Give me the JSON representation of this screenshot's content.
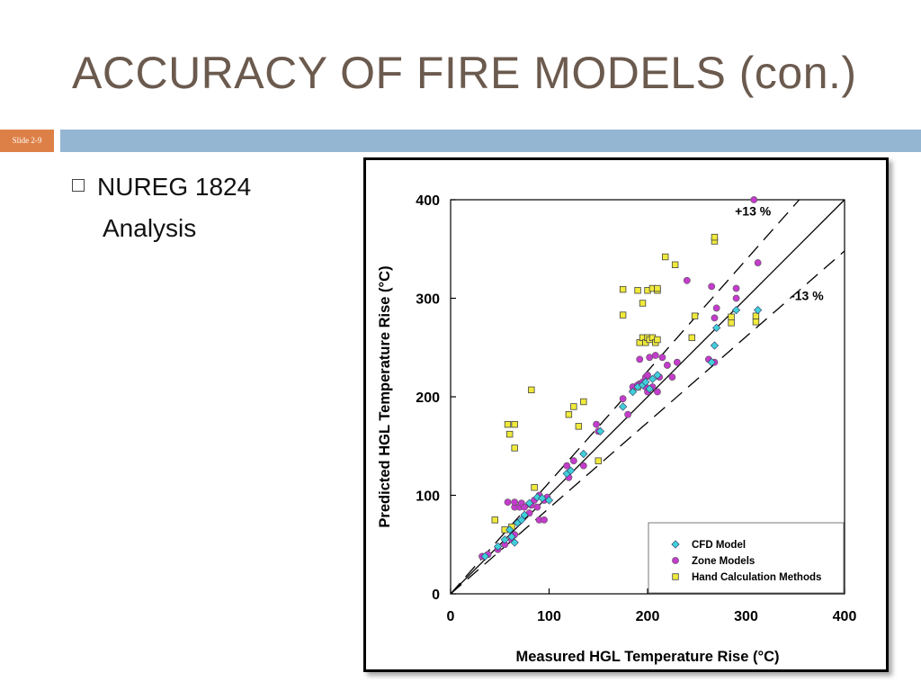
{
  "slide": {
    "title": "ACCURACY OF FIRE MODELS (con.)",
    "slide_number": "Slide 2-9",
    "bullet": {
      "line1": "NUREG 1824",
      "line2": "Analysis"
    },
    "colors": {
      "title": "#6b5a4e",
      "bar": "#94b6d2",
      "tag": "#dd8047"
    }
  },
  "chart_data": {
    "type": "scatter",
    "xlabel": "Measured HGL Temperature Rise (°C)",
    "ylabel": "Predicted HGL Temperature Rise (°C)",
    "xlim": [
      0,
      400
    ],
    "ylim": [
      0,
      400
    ],
    "xticks": [
      "0",
      "100",
      "200",
      "300",
      "400"
    ],
    "yticks": [
      "0",
      "100",
      "200",
      "300",
      "400"
    ],
    "grid": false,
    "legend_position": "bottom-right",
    "annotations": [
      {
        "text": "+13 %",
        "x": 307,
        "y": 384
      },
      {
        "text": "-13 %",
        "x": 362,
        "y": 298
      }
    ],
    "reference_lines": [
      {
        "style": "solid",
        "slope": 1.0
      },
      {
        "style": "dashed",
        "slope": 1.13
      },
      {
        "style": "dashed",
        "slope": 0.87
      }
    ],
    "series": [
      {
        "name": "CFD Model",
        "marker": "diamond",
        "color": "#3fd0d8",
        "points": [
          [
            35,
            38
          ],
          [
            48,
            48
          ],
          [
            55,
            55
          ],
          [
            62,
            58
          ],
          [
            68,
            72
          ],
          [
            72,
            75
          ],
          [
            80,
            92
          ],
          [
            88,
            98
          ],
          [
            93,
            97
          ],
          [
            118,
            122
          ],
          [
            122,
            125
          ],
          [
            135,
            142
          ],
          [
            152,
            165
          ],
          [
            175,
            190
          ],
          [
            190,
            210
          ],
          [
            195,
            212
          ],
          [
            198,
            215
          ],
          [
            202,
            208
          ],
          [
            205,
            218
          ],
          [
            210,
            222
          ],
          [
            265,
            235
          ],
          [
            268,
            252
          ],
          [
            270,
            270
          ],
          [
            290,
            288
          ],
          [
            312,
            288
          ],
          [
            60,
            65
          ],
          [
            65,
            52
          ],
          [
            75,
            80
          ],
          [
            100,
            95
          ],
          [
            185,
            205
          ]
        ]
      },
      {
        "name": "Zone Models",
        "marker": "circle",
        "color": "#c43ccc",
        "points": [
          [
            32,
            38
          ],
          [
            38,
            40
          ],
          [
            48,
            45
          ],
          [
            55,
            50
          ],
          [
            58,
            93
          ],
          [
            62,
            55
          ],
          [
            65,
            60
          ],
          [
            65,
            88
          ],
          [
            65,
            93
          ],
          [
            70,
            88
          ],
          [
            72,
            92
          ],
          [
            75,
            88
          ],
          [
            80,
            82
          ],
          [
            82,
            90
          ],
          [
            85,
            95
          ],
          [
            88,
            88
          ],
          [
            90,
            100
          ],
          [
            90,
            75
          ],
          [
            95,
            75
          ],
          [
            95,
            95
          ],
          [
            98,
            98
          ],
          [
            118,
            130
          ],
          [
            120,
            118
          ],
          [
            125,
            135
          ],
          [
            135,
            130
          ],
          [
            148,
            172
          ],
          [
            175,
            198
          ],
          [
            180,
            182
          ],
          [
            185,
            210
          ],
          [
            190,
            212
          ],
          [
            192,
            238
          ],
          [
            195,
            215
          ],
          [
            198,
            220
          ],
          [
            200,
            205
          ],
          [
            200,
            222
          ],
          [
            202,
            240
          ],
          [
            205,
            210
          ],
          [
            208,
            242
          ],
          [
            210,
            205
          ],
          [
            212,
            220
          ],
          [
            215,
            240
          ],
          [
            220,
            232
          ],
          [
            225,
            220
          ],
          [
            230,
            235
          ],
          [
            240,
            318
          ],
          [
            262,
            238
          ],
          [
            265,
            312
          ],
          [
            268,
            280
          ],
          [
            270,
            290
          ],
          [
            268,
            235
          ],
          [
            290,
            300
          ],
          [
            290,
            310
          ],
          [
            308,
            400
          ],
          [
            312,
            336
          ],
          [
            150,
            165
          ],
          [
            198,
            210
          ]
        ]
      },
      {
        "name": "Hand Calculation Methods",
        "marker": "square",
        "color": "#f0ea3a",
        "points": [
          [
            45,
            75
          ],
          [
            55,
            65
          ],
          [
            58,
            172
          ],
          [
            60,
            162
          ],
          [
            62,
            68
          ],
          [
            65,
            172
          ],
          [
            65,
            148
          ],
          [
            82,
            207
          ],
          [
            85,
            108
          ],
          [
            120,
            182
          ],
          [
            125,
            190
          ],
          [
            130,
            170
          ],
          [
            135,
            195
          ],
          [
            150,
            135
          ],
          [
            175,
            283
          ],
          [
            175,
            309
          ],
          [
            190,
            210
          ],
          [
            190,
            308
          ],
          [
            192,
            255
          ],
          [
            195,
            260
          ],
          [
            195,
            295
          ],
          [
            198,
            255
          ],
          [
            200,
            260
          ],
          [
            200,
            308
          ],
          [
            202,
            258
          ],
          [
            205,
            260
          ],
          [
            205,
            310
          ],
          [
            208,
            255
          ],
          [
            210,
            258
          ],
          [
            210,
            308
          ],
          [
            218,
            342
          ],
          [
            228,
            334
          ],
          [
            245,
            260
          ],
          [
            248,
            282
          ],
          [
            268,
            358
          ],
          [
            268,
            362
          ],
          [
            285,
            275
          ],
          [
            285,
            281
          ],
          [
            310,
            276
          ],
          [
            310,
            282
          ],
          [
            210,
            310
          ]
        ]
      }
    ]
  }
}
